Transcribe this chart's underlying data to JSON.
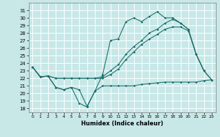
{
  "background_color": "#c8e8e8",
  "grid_color": "#ffffff",
  "line_color": "#1a6e6a",
  "xlabel": "Humidex (Indice chaleur)",
  "xlim": [
    -0.5,
    23.5
  ],
  "ylim": [
    17.5,
    32.0
  ],
  "yticks": [
    18,
    19,
    20,
    21,
    22,
    23,
    24,
    25,
    26,
    27,
    28,
    29,
    30,
    31
  ],
  "xticks": [
    0,
    1,
    2,
    3,
    4,
    5,
    6,
    7,
    8,
    9,
    10,
    11,
    12,
    13,
    14,
    15,
    16,
    17,
    18,
    19,
    20,
    21,
    22,
    23
  ],
  "line_spiky_x": [
    0,
    1,
    2,
    3,
    4,
    5,
    6,
    7,
    8,
    9,
    10,
    11,
    12,
    13,
    14,
    15,
    16,
    17,
    18,
    19,
    20,
    21,
    22
  ],
  "line_spiky_y": [
    23.5,
    22.2,
    22.3,
    20.8,
    20.5,
    20.8,
    18.7,
    18.2,
    20.3,
    22.5,
    27.0,
    27.2,
    29.5,
    30.0,
    29.5,
    30.2,
    30.8,
    30.0,
    30.0,
    29.3,
    28.5,
    25.2,
    23.0
  ],
  "line_upper_x": [
    0,
    1,
    2,
    3,
    4,
    5,
    6,
    7,
    8,
    9,
    10,
    11,
    12,
    13,
    14,
    15,
    16,
    17,
    18,
    19,
    20,
    21,
    22,
    23
  ],
  "line_upper_y": [
    23.5,
    22.2,
    22.3,
    22.0,
    22.0,
    22.0,
    22.0,
    22.0,
    22.0,
    22.2,
    23.0,
    23.8,
    25.2,
    26.2,
    27.0,
    28.0,
    28.5,
    29.3,
    29.8,
    29.3,
    28.5,
    25.2,
    23.0,
    21.8
  ],
  "line_lower_x": [
    0,
    1,
    2,
    3,
    4,
    5,
    6,
    7,
    8,
    9,
    10,
    11,
    12,
    13,
    14,
    15,
    16,
    17,
    18,
    19,
    20,
    21,
    22,
    23
  ],
  "line_lower_y": [
    23.5,
    22.2,
    22.3,
    22.0,
    22.0,
    22.0,
    22.0,
    22.0,
    22.0,
    22.0,
    22.5,
    23.2,
    24.5,
    25.5,
    26.5,
    27.2,
    27.8,
    28.5,
    28.8,
    28.8,
    28.3,
    25.2,
    23.0,
    21.8
  ],
  "line_flat_x": [
    0,
    1,
    2,
    3,
    4,
    5,
    6,
    7,
    8,
    9,
    10,
    11,
    12,
    13,
    14,
    15,
    16,
    17,
    18,
    19,
    20,
    21,
    22,
    23
  ],
  "line_flat_y": [
    23.5,
    22.2,
    22.3,
    20.8,
    20.5,
    20.8,
    20.5,
    18.3,
    20.3,
    21.0,
    21.0,
    21.0,
    21.0,
    21.0,
    21.2,
    21.3,
    21.4,
    21.5,
    21.5,
    21.5,
    21.5,
    21.5,
    21.7,
    21.8
  ]
}
